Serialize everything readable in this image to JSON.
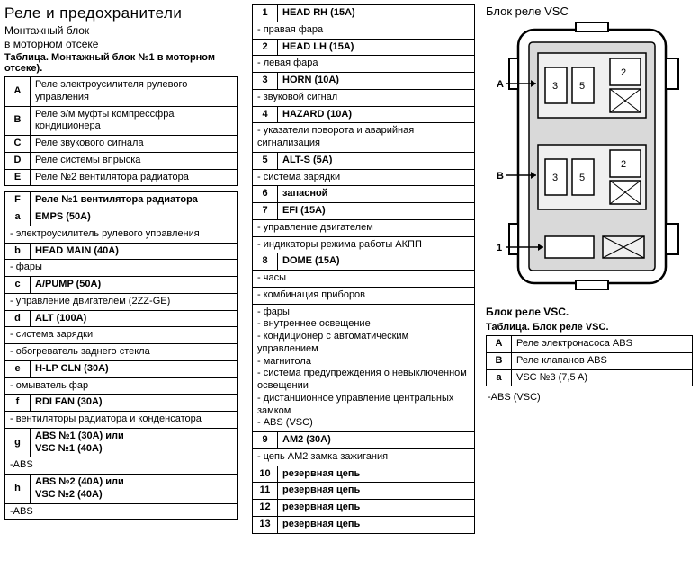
{
  "col1": {
    "title": "Реле и предохранители",
    "sub1": "Монтажный блок",
    "sub2": "в моторном отсеке",
    "tablecap": "Таблица. Монтажный блок №1 в моторном отсеке).",
    "table1": [
      {
        "k": "A",
        "v": "Реле электроусилителя рулевого управления"
      },
      {
        "k": "B",
        "v": "Реле э/м муфты компрессфра кондиционера"
      },
      {
        "k": "C",
        "v": "Реле звукового сигнала"
      },
      {
        "k": "D",
        "v": "Реле системы впрыска"
      },
      {
        "k": "E",
        "v": "Реле №2 вентилятора радиатора"
      }
    ],
    "table2": [
      {
        "k": "F",
        "v": "Реле №1 вентилятора радиатора",
        "bold": true
      },
      {
        "k": "a",
        "v": "EMPS (50A)",
        "bold": true
      },
      {
        "full": "- электроусилитель рулевого управления"
      },
      {
        "k": "b",
        "v": "HEAD MAIN (40A)",
        "bold": true
      },
      {
        "full": "- фары"
      },
      {
        "k": "c",
        "v": "A/PUMP (50A)",
        "bold": true
      },
      {
        "full": "- управление двигателем (2ZZ-GE)"
      },
      {
        "k": "d",
        "v": "ALT   (100A)",
        "bold": true
      },
      {
        "full": "- система зарядки"
      },
      {
        "full": "- обогреватель заднего стекла"
      },
      {
        "k": "e",
        "v": "H-LP CLN (30A)",
        "bold": true
      },
      {
        "full": "- омыватель фар"
      },
      {
        "k": "f",
        "v": "RDI FAN (30A)",
        "bold": true
      },
      {
        "full": "- вентиляторы радиатора и конденсатора"
      },
      {
        "k": "g",
        "v": "ABS №1      (30A) или\nVSC №1      (40A)",
        "bold": true
      },
      {
        "fullplain": "-ABS"
      },
      {
        "k": "h",
        "v": "ABS №2      (40A) или\nVSC №2      (40A)",
        "bold": true
      },
      {
        "fullplain": "-ABS"
      }
    ]
  },
  "col2": {
    "rows": [
      {
        "k": "1",
        "v": "HEAD RH (15A)",
        "bold": true
      },
      {
        "full": "- правая фара"
      },
      {
        "k": "2",
        "v": "HEAD LH (15A)",
        "bold": true
      },
      {
        "full": "- левая фара"
      },
      {
        "k": "3",
        "v": "HORN (10A)",
        "bold": true
      },
      {
        "full": "- звуковой сигнал"
      },
      {
        "k": "4",
        "v": "HAZARD (10A)",
        "bold": true
      },
      {
        "full": "- указатели поворота и аварийная сигнализация"
      },
      {
        "k": "5",
        "v": "ALT-S (5A)",
        "bold": true
      },
      {
        "full": "- система зарядки"
      },
      {
        "k": "6",
        "v": "запасной",
        "bold": true
      },
      {
        "k": "7",
        "v": "EFI (15A)",
        "bold": true
      },
      {
        "full": "- управление двигателем"
      },
      {
        "full": "- индикаторы режима работы АКПП"
      },
      {
        "k": "8",
        "v": "DOME (15A)",
        "bold": true
      },
      {
        "full": "- часы"
      },
      {
        "full": "- комбинация приборов"
      },
      {
        "full": "- фары\n- внутреннее освещение\n- кондиционер с автоматическим управлением\n- магнитола\n- система предупреждения о невыключенном освещении\n- дистанционное управление центральных замком\n- ABS  (VSC)"
      },
      {
        "k": "9",
        "v": "AM2 (30A)",
        "bold": true
      },
      {
        "full": "- цепь AM2 замка зажигания"
      },
      {
        "k": "10",
        "v": "резервная цепь",
        "bold": true
      },
      {
        "k": "11",
        "v": "резервная цепь",
        "bold": true
      },
      {
        "k": "12",
        "v": "резервная цепь",
        "bold": true
      },
      {
        "k": "13",
        "v": "резервная цепь",
        "bold": true
      }
    ]
  },
  "col3": {
    "title": "Блок реле VSC",
    "caption1": "Блок реле VSC.",
    "tablecap": "Таблица. Блок реле VSC.",
    "rows": [
      {
        "k": "A",
        "v": "Реле электронасоса ABS"
      },
      {
        "k": "B",
        "v": "Реле клапанов ABS"
      },
      {
        "k": "a",
        "v": "VSC №3 (7,5 A)"
      }
    ],
    "footer": "-ABS  (VSC)",
    "diagram": {
      "labelA": "A",
      "labelB": "B",
      "label1": "1",
      "n2": "2",
      "n3": "3",
      "n5": "5"
    }
  }
}
